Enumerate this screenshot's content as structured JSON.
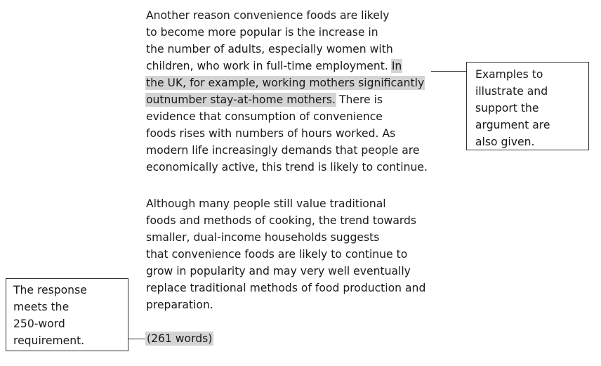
{
  "essay": {
    "paragraph1": [
      "Another reason convenience foods are likely",
      "to become more popular is the increase in",
      "the number of adults, especially women with",
      "children, who work in full-time employment. ",
      "the UK, for example, working mothers significantly",
      "outnumber stay-at-home mothers.",
      " There is",
      "evidence that consumption of convenience",
      "foods rises with numbers of hours worked. As",
      "modern life increasingly demands that people are",
      "economically active, this trend is likely to continue."
    ],
    "highlight_start": "In",
    "paragraph2": [
      "Although many people still value traditional",
      "foods and methods of cooking, the trend towards",
      "smaller, dual-income households suggests",
      "that convenience foods are likely to continue to",
      "grow in popularity and may very well eventually",
      "replace traditional methods of food production and",
      "preparation."
    ],
    "word_count": "(261 words)"
  },
  "annotations": {
    "examples": [
      "Examples to",
      "illustrate and",
      "support the",
      "argument are",
      "also given."
    ],
    "word_requirement": [
      "The response",
      "meets the",
      "250-word",
      "requirement."
    ]
  }
}
